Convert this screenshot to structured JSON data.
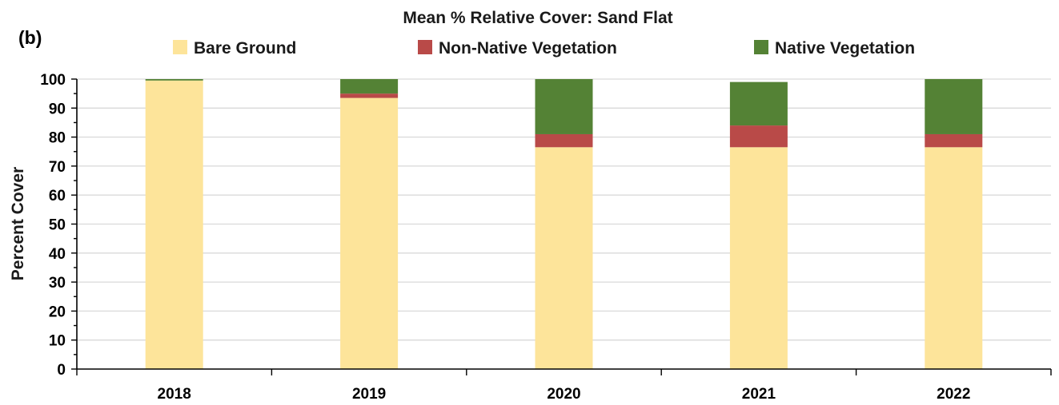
{
  "chart_data": {
    "type": "bar",
    "stacked": true,
    "title": "Mean % Relative Cover: Sand Flat",
    "panel_label": "(b)",
    "ylabel": "Percent Cover",
    "xlabel": "",
    "categories": [
      "2018",
      "2019",
      "2020",
      "2021",
      "2022"
    ],
    "ylim": [
      0,
      100
    ],
    "yticks": [
      0,
      10,
      20,
      30,
      40,
      50,
      60,
      70,
      80,
      90,
      100
    ],
    "grid": true,
    "legend_position": "top",
    "series": [
      {
        "name": "Bare Ground",
        "color": "#FDE49A",
        "values": [
          99.5,
          93.5,
          76.5,
          76.5,
          76.5
        ]
      },
      {
        "name": "Non-Native Vegetation",
        "color": "#B94A48",
        "values": [
          0,
          1.5,
          4.5,
          7.5,
          4.5
        ]
      },
      {
        "name": "Native Vegetation",
        "color": "#548235",
        "values": [
          0.5,
          5,
          19,
          15,
          19
        ]
      }
    ]
  }
}
